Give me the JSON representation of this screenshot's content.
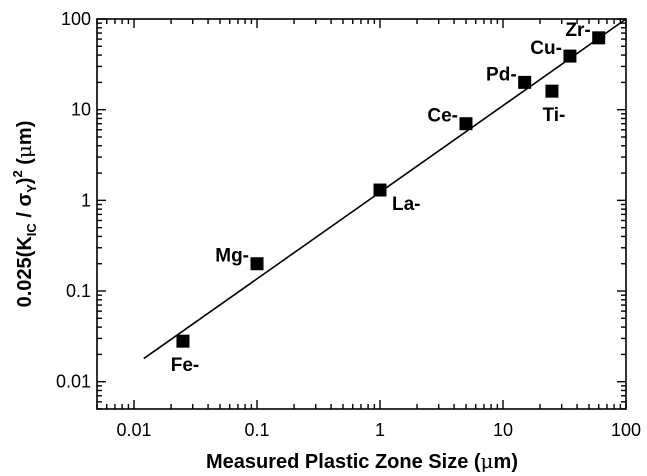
{
  "chart_data": {
    "type": "scatter",
    "x_scale": "log",
    "y_scale": "log",
    "xlim": [
      0.005,
      100
    ],
    "ylim": [
      0.005,
      100
    ],
    "grid": false,
    "x_ticks": [
      {
        "value": 0.01,
        "label": "0.01"
      },
      {
        "value": 0.1,
        "label": "0.1"
      },
      {
        "value": 1,
        "label": "1"
      },
      {
        "value": 10,
        "label": "10"
      },
      {
        "value": 100,
        "label": "100"
      }
    ],
    "y_ticks": [
      {
        "value": 0.01,
        "label": "0.01"
      },
      {
        "value": 0.1,
        "label": "0.1"
      },
      {
        "value": 1,
        "label": "1"
      },
      {
        "value": 10,
        "label": "10"
      },
      {
        "value": 100,
        "label": "100"
      }
    ],
    "xlabel": {
      "main": "Measured  Plastic Zone Size (",
      "greek": "μ",
      "tail": "m)"
    },
    "ylabel": {
      "prefix": "0.025(K",
      "sub1": "IC",
      "mid": " / σ",
      "sub2": "Y",
      "close": ")",
      "sup": "2",
      "unit_open": " (",
      "greek": "μ",
      "unit_close": "m)"
    },
    "points": [
      {
        "label": "Fe-",
        "x": 0.025,
        "y": 0.028,
        "label_pos": "below"
      },
      {
        "label": "Mg-",
        "x": 0.1,
        "y": 0.2,
        "label_pos": "left"
      },
      {
        "label": "La-",
        "x": 1.0,
        "y": 1.3,
        "label_pos": "below-right"
      },
      {
        "label": "Ce-",
        "x": 5.0,
        "y": 7.0,
        "label_pos": "left"
      },
      {
        "label": "Pd-",
        "x": 15,
        "y": 20,
        "label_pos": "left"
      },
      {
        "label": "Ti-",
        "x": 25,
        "y": 16,
        "label_pos": "below"
      },
      {
        "label": "Cu-",
        "x": 35,
        "y": 39,
        "label_pos": "left"
      },
      {
        "label": "Zr-",
        "x": 60,
        "y": 62,
        "label_pos": "left"
      }
    ],
    "fit_line": {
      "x": [
        0.012,
        100
      ],
      "y": [
        0.018,
        100
      ]
    }
  }
}
